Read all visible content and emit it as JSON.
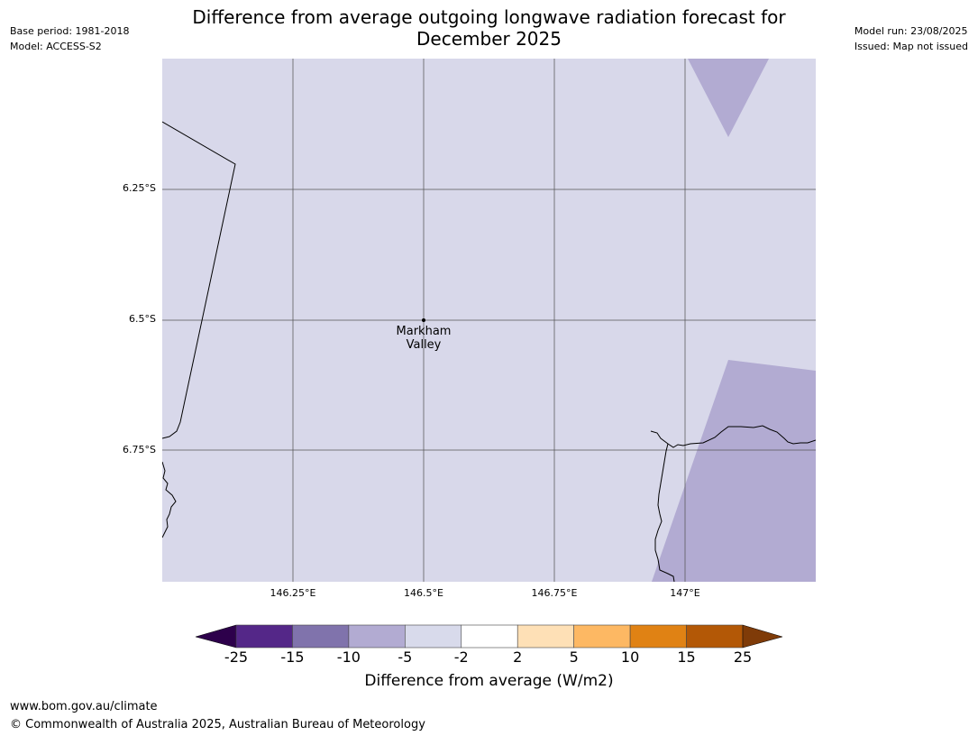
{
  "header": {
    "base_period": "Base period: 1981-2018",
    "model": "Model: ACCESS-S2",
    "title_line1": "Difference from average outgoing longwave radiation forecast for",
    "title_line2": "December 2025",
    "model_run": "Model run: 23/08/2025",
    "issued": "Issued: Map not issued"
  },
  "map": {
    "lat_ticks": [
      "6.25°S",
      "6.5°S",
      "6.75°S"
    ],
    "lon_ticks": [
      "146.25°E",
      "146.5°E",
      "146.75°E",
      "147°E"
    ],
    "place": {
      "name_line1": "Markham",
      "name_line2": "Valley"
    },
    "background_class_color": "#d8d8ea",
    "patch_class_color": "#b2abd2"
  },
  "legend": {
    "title": "Difference from average (W/m2)",
    "tick_labels": [
      "-25",
      "-15",
      "-10",
      "-5",
      "-2",
      "2",
      "5",
      "10",
      "15",
      "25"
    ],
    "under_color": "#2d004b",
    "over_color": "#7f3b08",
    "bin_colors": [
      "#542788",
      "#8073ac",
      "#b2abd2",
      "#d8daeb",
      "#ffffff",
      "#fee0b6",
      "#fdb863",
      "#e08214",
      "#b35806"
    ]
  },
  "footer": {
    "url": "www.bom.gov.au/climate",
    "copyright": "© Commonwealth of Australia 2025, Australian Bureau of Meteorology"
  }
}
